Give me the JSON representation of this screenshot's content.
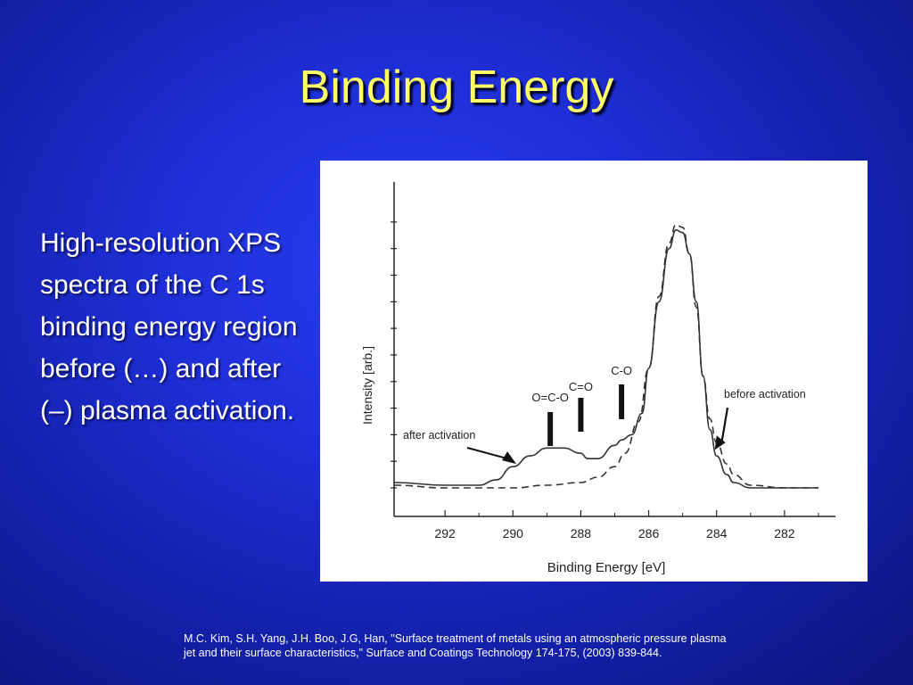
{
  "slide": {
    "title": "Binding Energy",
    "description": "High-resolution XPS spectra of the C 1s binding energy region before (…) and after (–) plasma activation.",
    "citation_line1": "M.C. Kim, S.H. Yang, J.H. Boo, J.G, Han, \"Surface treatment of metals using an atmospheric pressure plasma",
    "citation_line2": "jet and their surface characteristics,\" Surface and Coatings Technology 174-175, (2003) 839-844.",
    "colors": {
      "title": "#ffff66",
      "text": "#ffffff",
      "background": "#1f2fd8"
    }
  },
  "chart_data": {
    "type": "line",
    "title": "",
    "xlabel": "Binding Energy [eV]",
    "ylabel": "Intensity [arb.]",
    "xlim": [
      293.5,
      280.5
    ],
    "ylim": [
      0,
      1.05
    ],
    "x_reversed": true,
    "xticks": [
      292,
      290,
      288,
      286,
      284,
      282
    ],
    "yticks": [
      0,
      0.1,
      0.2,
      0.3,
      0.4,
      0.5,
      0.6,
      0.7,
      0.8,
      0.9,
      1.0
    ],
    "series": [
      {
        "name": "after activation",
        "style": "solid",
        "points": [
          [
            293.5,
            0.02
          ],
          [
            292,
            0.01
          ],
          [
            291,
            0.01
          ],
          [
            290.5,
            0.03
          ],
          [
            290,
            0.08
          ],
          [
            289.5,
            0.12
          ],
          [
            289,
            0.15
          ],
          [
            288.5,
            0.15
          ],
          [
            288,
            0.13
          ],
          [
            287.8,
            0.11
          ],
          [
            287.5,
            0.11
          ],
          [
            287,
            0.16
          ],
          [
            286.8,
            0.18
          ],
          [
            286.5,
            0.2
          ],
          [
            286.2,
            0.28
          ],
          [
            286,
            0.45
          ],
          [
            285.7,
            0.7
          ],
          [
            285.4,
            0.9
          ],
          [
            285.2,
            0.97
          ],
          [
            285.0,
            0.96
          ],
          [
            284.8,
            0.88
          ],
          [
            284.6,
            0.7
          ],
          [
            284.4,
            0.42
          ],
          [
            284.2,
            0.22
          ],
          [
            284.0,
            0.12
          ],
          [
            283.7,
            0.05
          ],
          [
            283.5,
            0.02
          ],
          [
            283,
            0.0
          ],
          [
            282,
            0.0
          ],
          [
            281,
            0.0
          ]
        ]
      },
      {
        "name": "before activation",
        "style": "dashed",
        "points": [
          [
            293.5,
            0.01
          ],
          [
            292,
            0.0
          ],
          [
            291,
            0.0
          ],
          [
            290,
            0.0
          ],
          [
            289,
            0.01
          ],
          [
            288,
            0.02
          ],
          [
            287.5,
            0.04
          ],
          [
            287,
            0.08
          ],
          [
            286.7,
            0.13
          ],
          [
            286.3,
            0.25
          ],
          [
            286,
            0.45
          ],
          [
            285.7,
            0.72
          ],
          [
            285.4,
            0.92
          ],
          [
            285.2,
            0.99
          ],
          [
            285.0,
            0.98
          ],
          [
            284.8,
            0.88
          ],
          [
            284.6,
            0.68
          ],
          [
            284.4,
            0.42
          ],
          [
            284.2,
            0.26
          ],
          [
            284.0,
            0.17
          ],
          [
            283.7,
            0.09
          ],
          [
            283.5,
            0.05
          ],
          [
            283,
            0.01
          ],
          [
            282,
            0.0
          ],
          [
            281,
            0.0
          ]
        ]
      }
    ],
    "annotations": [
      {
        "text": "O=C-O",
        "x": 288.9
      },
      {
        "text": "C=O",
        "x": 288.0
      },
      {
        "text": "C-O",
        "x": 286.8
      },
      {
        "text": "after activation",
        "arrow_to": [
          289.9,
          0.09
        ]
      },
      {
        "text": "before activation",
        "arrow_to": [
          284.0,
          0.15
        ]
      }
    ],
    "grid": false,
    "legend": "none"
  }
}
